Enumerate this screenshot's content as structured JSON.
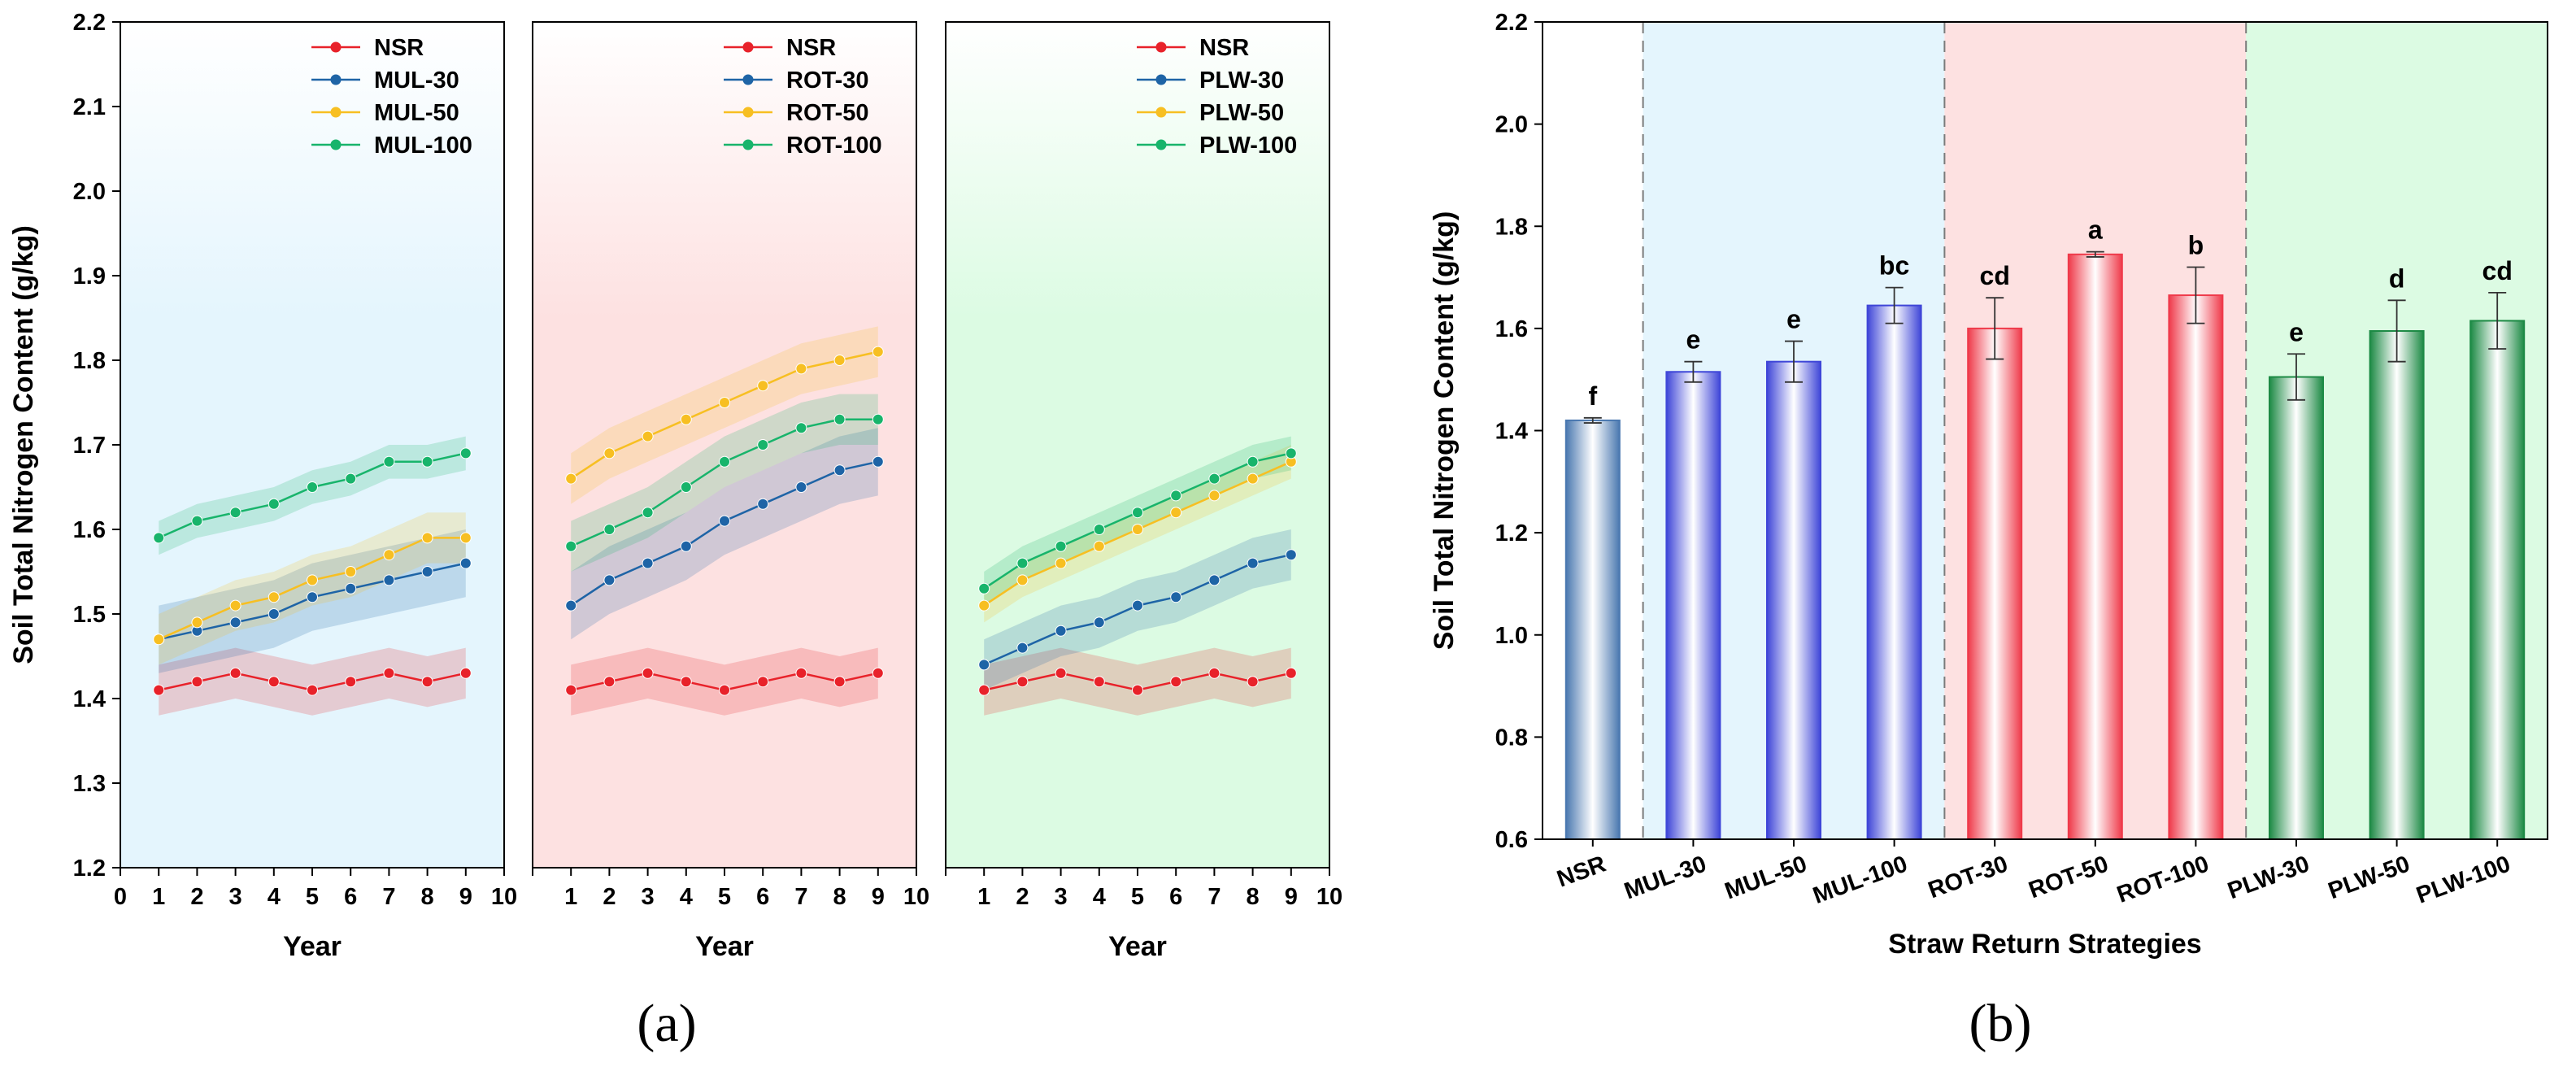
{
  "colors": {
    "NSR": "#e8222a",
    "S30": "#1e64a6",
    "S50": "#f7bf22",
    "S100": "#18b46b",
    "MUL_bg": "#e4f5fd",
    "ROT_bg": "#fde1e1",
    "PLW_bg": "#dcfbe3"
  },
  "chart_data": [
    {
      "id": "a",
      "panel_label": "(a)",
      "type": "line",
      "ylabel": "Soil Total Nitrogen Content (g/kg)",
      "ylim": [
        1.2,
        2.2
      ],
      "yticks": [
        "1.2",
        "1.3",
        "1.4",
        "1.5",
        "1.6",
        "1.7",
        "1.8",
        "1.9",
        "2.0",
        "2.1",
        "2.2"
      ],
      "panels": [
        {
          "group": "MUL",
          "xlabel": "Year",
          "xlim": [
            0,
            10
          ],
          "xticks": [
            "0",
            "1",
            "2",
            "3",
            "4",
            "5",
            "6",
            "7",
            "8",
            "9",
            "10"
          ],
          "x": [
            1,
            2,
            3,
            4,
            5,
            6,
            7,
            8,
            9
          ],
          "series": [
            {
              "name": "NSR",
              "key": "NSR",
              "values": [
                1.41,
                1.42,
                1.43,
                1.42,
                1.41,
                1.42,
                1.43,
                1.42,
                1.43
              ],
              "band": 0.03
            },
            {
              "name": "MUL-30",
              "key": "S30",
              "values": [
                1.47,
                1.48,
                1.49,
                1.5,
                1.52,
                1.53,
                1.54,
                1.55,
                1.56
              ],
              "band": 0.04
            },
            {
              "name": "MUL-50",
              "key": "S50",
              "values": [
                1.47,
                1.49,
                1.51,
                1.52,
                1.54,
                1.55,
                1.57,
                1.59,
                1.59
              ],
              "band": 0.03
            },
            {
              "name": "MUL-100",
              "key": "S100",
              "values": [
                1.59,
                1.61,
                1.62,
                1.63,
                1.65,
                1.66,
                1.68,
                1.68,
                1.69
              ],
              "band": 0.02
            }
          ]
        },
        {
          "group": "ROT",
          "xlabel": "Year",
          "xlim": [
            0,
            10
          ],
          "xticks": [
            "1",
            "2",
            "3",
            "4",
            "5",
            "6",
            "7",
            "8",
            "9",
            "10"
          ],
          "x": [
            1,
            2,
            3,
            4,
            5,
            6,
            7,
            8,
            9
          ],
          "series": [
            {
              "name": "NSR",
              "key": "NSR",
              "values": [
                1.41,
                1.42,
                1.43,
                1.42,
                1.41,
                1.42,
                1.43,
                1.42,
                1.43
              ],
              "band": 0.03
            },
            {
              "name": "ROT-30",
              "key": "S30",
              "values": [
                1.51,
                1.54,
                1.56,
                1.58,
                1.61,
                1.63,
                1.65,
                1.67,
                1.68
              ],
              "band": 0.04
            },
            {
              "name": "ROT-50",
              "key": "S50",
              "values": [
                1.66,
                1.69,
                1.71,
                1.73,
                1.75,
                1.77,
                1.79,
                1.8,
                1.81
              ],
              "band": 0.03
            },
            {
              "name": "ROT-100",
              "key": "S100",
              "values": [
                1.58,
                1.6,
                1.62,
                1.65,
                1.68,
                1.7,
                1.72,
                1.73,
                1.73
              ],
              "band": 0.03
            }
          ]
        },
        {
          "group": "PLW",
          "xlabel": "Year",
          "xlim": [
            0,
            10
          ],
          "xticks": [
            "1",
            "2",
            "3",
            "4",
            "5",
            "6",
            "7",
            "8",
            "9",
            "10"
          ],
          "x": [
            1,
            2,
            3,
            4,
            5,
            6,
            7,
            8,
            9
          ],
          "series": [
            {
              "name": "NSR",
              "key": "NSR",
              "values": [
                1.41,
                1.42,
                1.43,
                1.42,
                1.41,
                1.42,
                1.43,
                1.42,
                1.43
              ],
              "band": 0.03
            },
            {
              "name": "PLW-30",
              "key": "S30",
              "values": [
                1.44,
                1.46,
                1.48,
                1.49,
                1.51,
                1.52,
                1.54,
                1.56,
                1.57
              ],
              "band": 0.03
            },
            {
              "name": "PLW-50",
              "key": "S50",
              "values": [
                1.51,
                1.54,
                1.56,
                1.58,
                1.6,
                1.62,
                1.64,
                1.66,
                1.68
              ],
              "band": 0.02
            },
            {
              "name": "PLW-100",
              "key": "S100",
              "values": [
                1.53,
                1.56,
                1.58,
                1.6,
                1.62,
                1.64,
                1.66,
                1.68,
                1.69
              ],
              "band": 0.02
            }
          ]
        }
      ]
    },
    {
      "id": "b",
      "panel_label": "(b)",
      "type": "bar",
      "ylabel": "Soil Total Nitrogen Content (g/kg)",
      "xlabel": "Straw Return Strategies",
      "ylim": [
        0.6,
        2.2
      ],
      "yticks": [
        "0.6",
        "0.8",
        "1.0",
        "1.2",
        "1.4",
        "1.6",
        "1.8",
        "2.0",
        "2.2"
      ],
      "categories": [
        "NSR",
        "MUL-30",
        "MUL-50",
        "MUL-100",
        "ROT-30",
        "ROT-50",
        "ROT-100",
        "PLW-30",
        "PLW-50",
        "PLW-100"
      ],
      "values": [
        1.42,
        1.515,
        1.535,
        1.645,
        1.6,
        1.745,
        1.665,
        1.505,
        1.595,
        1.615
      ],
      "errors": [
        0.005,
        0.02,
        0.04,
        0.035,
        0.06,
        0.005,
        0.055,
        0.045,
        0.06,
        0.055
      ],
      "letters": [
        "f",
        "e",
        "e",
        "bc",
        "cd",
        "a",
        "b",
        "e",
        "d",
        "cd"
      ],
      "bar_groups": [
        "NSR",
        "MUL",
        "MUL",
        "MUL",
        "ROT",
        "ROT",
        "ROT",
        "PLW",
        "PLW",
        "PLW"
      ],
      "group_colors": {
        "NSR": "#4a78b0",
        "MUL": "#3f46d8",
        "ROT": "#ef3a4a",
        "PLW": "#1d8a45"
      },
      "group_bgs": {
        "MUL": "#e4f5fd",
        "ROT": "#fde1e1",
        "PLW": "#dcfbe3"
      }
    }
  ]
}
